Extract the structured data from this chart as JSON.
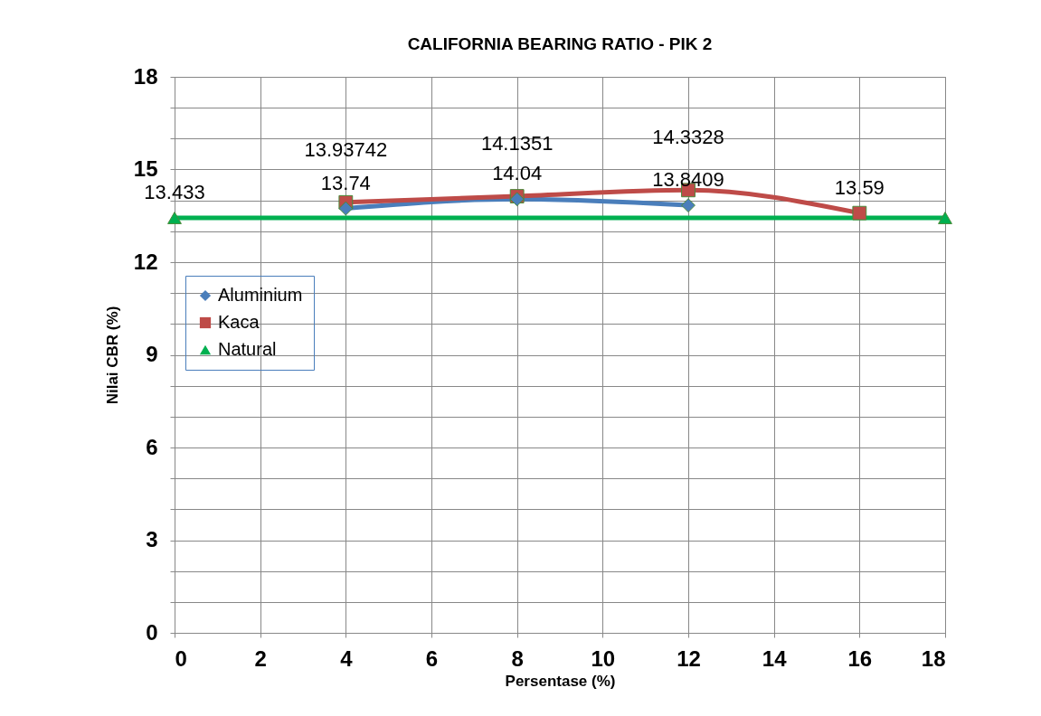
{
  "chart_data": {
    "type": "line",
    "title": "CALIFORNIA BEARING RATIO - PIK 2",
    "xlabel": "Persentase (%)",
    "ylabel": "Nilai CBR (%)",
    "xlim": [
      0,
      18
    ],
    "xticks": [
      0,
      2,
      4,
      6,
      8,
      10,
      12,
      14,
      16,
      18
    ],
    "ylim": [
      0,
      18
    ],
    "yticks": [
      0,
      {
        "value": 1,
        "label": null
      },
      {
        "value": 2,
        "label": null
      },
      3,
      {
        "value": 4,
        "label": null
      },
      {
        "value": 5,
        "label": null
      },
      6,
      {
        "value": 7,
        "label": null
      },
      {
        "value": 8,
        "label": null
      },
      9,
      {
        "value": 10,
        "label": null
      },
      {
        "value": 11,
        "label": null
      },
      12,
      {
        "value": 13,
        "label": null
      },
      {
        "value": 14,
        "label": null
      },
      15,
      {
        "value": 16,
        "label": null
      },
      {
        "value": 17,
        "label": null
      },
      18
    ],
    "grid": true,
    "legend": "left",
    "line_style": "solid",
    "series": [
      {
        "name": "Aluminium",
        "color": "#4a7ebb",
        "marker": "diamond",
        "x": [
          4,
          8,
          12
        ],
        "values": [
          13.74,
          14.04,
          13.8409
        ],
        "value_labels": [
          "13.74",
          "14.04",
          "13.8409"
        ]
      },
      {
        "name": "Kaca",
        "color": "#be4b48",
        "marker": "square",
        "x": [
          4,
          8,
          12,
          16
        ],
        "values": [
          13.93742,
          14.1351,
          14.3328,
          13.59
        ],
        "value_labels": [
          "13.93742",
          "14.1351",
          "14.3328",
          "13.59"
        ]
      },
      {
        "name": "Natural",
        "color": "#00b050",
        "marker": "triangle",
        "x": [
          0,
          18
        ],
        "values": [
          13.433,
          13.433
        ],
        "value_labels": [
          "13.433",
          null
        ]
      }
    ]
  }
}
